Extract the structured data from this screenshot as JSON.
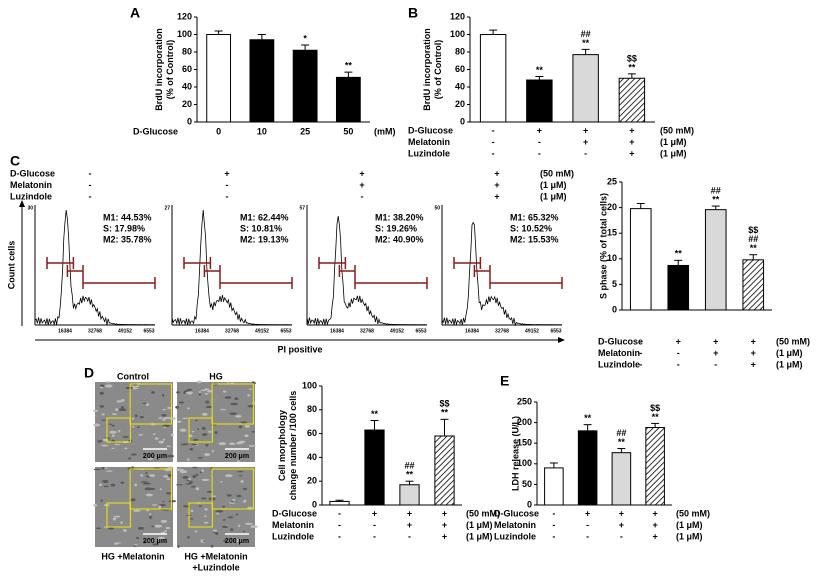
{
  "chart_data": [
    {
      "type": "bar",
      "panel": "A",
      "ylabel": [
        "BrdU incorporation",
        "(% of Control)"
      ],
      "categories": [
        "0",
        "10",
        "25",
        "50"
      ],
      "xlabel": "D-Glucose",
      "xunit": "(mM)",
      "values": [
        100,
        94,
        82,
        51
      ],
      "errors": [
        4,
        6,
        6,
        6
      ],
      "colors": [
        "#ffffff",
        "#000000",
        "#000000",
        "#000000"
      ],
      "ylim": [
        0,
        120
      ],
      "yticks": [
        0,
        20,
        40,
        60,
        80,
        100,
        120
      ],
      "annotations": [
        null,
        null,
        [
          "*"
        ],
        [
          "**"
        ]
      ]
    },
    {
      "type": "bar",
      "panel": "B",
      "ylabel": [
        "BrdU incorporation",
        "(% of Control)"
      ],
      "conditions": [
        {
          "label": "D-Glucose",
          "marks": [
            "-",
            "+",
            "+",
            "+"
          ],
          "unit": "(50  mM)"
        },
        {
          "label": "Melatonin",
          "marks": [
            "-",
            "-",
            "+",
            "+"
          ],
          "unit": "(1  μM)"
        },
        {
          "label": "Luzindole",
          "marks": [
            "-",
            "-",
            "-",
            "+"
          ],
          "unit": "(1  μM)"
        }
      ],
      "values": [
        100,
        48,
        77,
        50
      ],
      "errors": [
        5,
        4,
        6,
        5
      ],
      "colors": [
        "#ffffff",
        "#000000",
        "#d9d9d9",
        "hatch"
      ],
      "ylim": [
        0,
        120
      ],
      "yticks": [
        0,
        20,
        40,
        60,
        80,
        100,
        120
      ],
      "annotations": [
        null,
        [
          "**"
        ],
        [
          "##",
          "**"
        ],
        [
          "$$",
          "**"
        ]
      ]
    },
    {
      "type": "bar",
      "ylabel": [
        "S phase (% of total cells)"
      ],
      "conditions": [
        {
          "label": "D-Glucose",
          "marks": [
            "-",
            "+",
            "+",
            "+"
          ],
          "unit": "(50  mM)"
        },
        {
          "label": "Melatonin",
          "marks": [
            "-",
            "-",
            "+",
            "+"
          ],
          "unit": "(1  μM)"
        },
        {
          "label": "Luzindole",
          "marks": [
            "-",
            "-",
            "-",
            "+"
          ],
          "unit": "(1  μM)"
        }
      ],
      "values": [
        19.8,
        8.7,
        19.6,
        9.8
      ],
      "errors": [
        1,
        1,
        0.7,
        1
      ],
      "colors": [
        "#ffffff",
        "#000000",
        "#d9d9d9",
        "hatch"
      ],
      "ylim": [
        0,
        25
      ],
      "yticks": [
        0,
        5,
        10,
        15,
        20,
        25
      ],
      "annotations": [
        null,
        [
          "**"
        ],
        [
          "##",
          "**"
        ],
        [
          "$$",
          "##",
          "**"
        ]
      ]
    },
    {
      "type": "bar",
      "ylabel": [
        "Cell morphology",
        "change number /100 cells"
      ],
      "conditions": [
        {
          "label": "D-Glucose",
          "marks": [
            "-",
            "+",
            "+",
            "+"
          ],
          "unit": "(50  mM)"
        },
        {
          "label": "Melatonin",
          "marks": [
            "-",
            "-",
            "+",
            "+"
          ],
          "unit": "(1  μM)"
        },
        {
          "label": "Luzindole",
          "marks": [
            "-",
            "-",
            "-",
            "+"
          ],
          "unit": "(1  μM)"
        }
      ],
      "values": [
        3,
        63,
        17,
        58
      ],
      "errors": [
        1,
        8,
        3,
        14
      ],
      "colors": [
        "#ffffff",
        "#000000",
        "#d9d9d9",
        "hatch"
      ],
      "ylim": [
        0,
        100
      ],
      "yticks": [
        0,
        20,
        40,
        60,
        80,
        100
      ],
      "annotations": [
        null,
        [
          "**"
        ],
        [
          "##",
          "**"
        ],
        [
          "$$",
          "**"
        ]
      ]
    },
    {
      "type": "bar",
      "panel": "E",
      "ylabel": [
        "LDH release (U/L)"
      ],
      "conditions": [
        {
          "label": "D-Glucose",
          "marks": [
            "-",
            "+",
            "+",
            "+"
          ],
          "unit": "(50  mM)"
        },
        {
          "label": "Melatonin",
          "marks": [
            "-",
            "-",
            "+",
            "+"
          ],
          "unit": "(1  μM)"
        },
        {
          "label": "Luzindole",
          "marks": [
            "-",
            "-",
            "-",
            "+"
          ],
          "unit": "(1  μM)"
        }
      ],
      "values": [
        90,
        180,
        127,
        188
      ],
      "errors": [
        12,
        15,
        10,
        10
      ],
      "colors": [
        "#ffffff",
        "#000000",
        "#d9d9d9",
        "hatch"
      ],
      "ylim": [
        0,
        250
      ],
      "yticks": [
        0,
        50,
        100,
        150,
        200,
        250
      ],
      "annotations": [
        null,
        [
          "**"
        ],
        [
          "##",
          "**"
        ],
        [
          "$$",
          "**"
        ]
      ]
    }
  ],
  "flow": {
    "panel": "C",
    "ylabel": "Count cells",
    "xlabel": "PI positive",
    "xticks": [
      "16384",
      "32768",
      "49152",
      "6553"
    ],
    "conditions": [
      {
        "label": "D-Glucose",
        "marks": [
          "-",
          "+",
          "+",
          "+"
        ],
        "unit": "(50  mM)"
      },
      {
        "label": "Melatonin",
        "marks": [
          "-",
          "-",
          "+",
          "+"
        ],
        "unit": "(1  μM)"
      },
      {
        "label": "Luzindole",
        "marks": [
          "-",
          "-",
          "-",
          "+"
        ],
        "unit": "(1  μM)"
      }
    ],
    "histograms": [
      {
        "ymax": "30",
        "stats": [
          "M1: 44.53%",
          "S: 17.98%",
          "M2: 35.78%"
        ]
      },
      {
        "ymax": "27",
        "stats": [
          "M1: 62.44%",
          "S: 10.81%",
          "M2: 19.13%"
        ]
      },
      {
        "ymax": "57",
        "stats": [
          "M1: 38.20%",
          "S: 19.26%",
          "M2: 40.90%"
        ]
      },
      {
        "ymax": "50",
        "stats": [
          "M1: 65.32%",
          "S: 10.52%",
          "M2: 15.53%"
        ]
      }
    ]
  },
  "images": {
    "panel": "D",
    "labels": [
      [
        "Control"
      ],
      [
        "HG"
      ],
      [
        "HG +Melatonin"
      ],
      [
        "HG +Melatonin",
        "+Luzindole"
      ]
    ],
    "scale": "200 μm"
  }
}
